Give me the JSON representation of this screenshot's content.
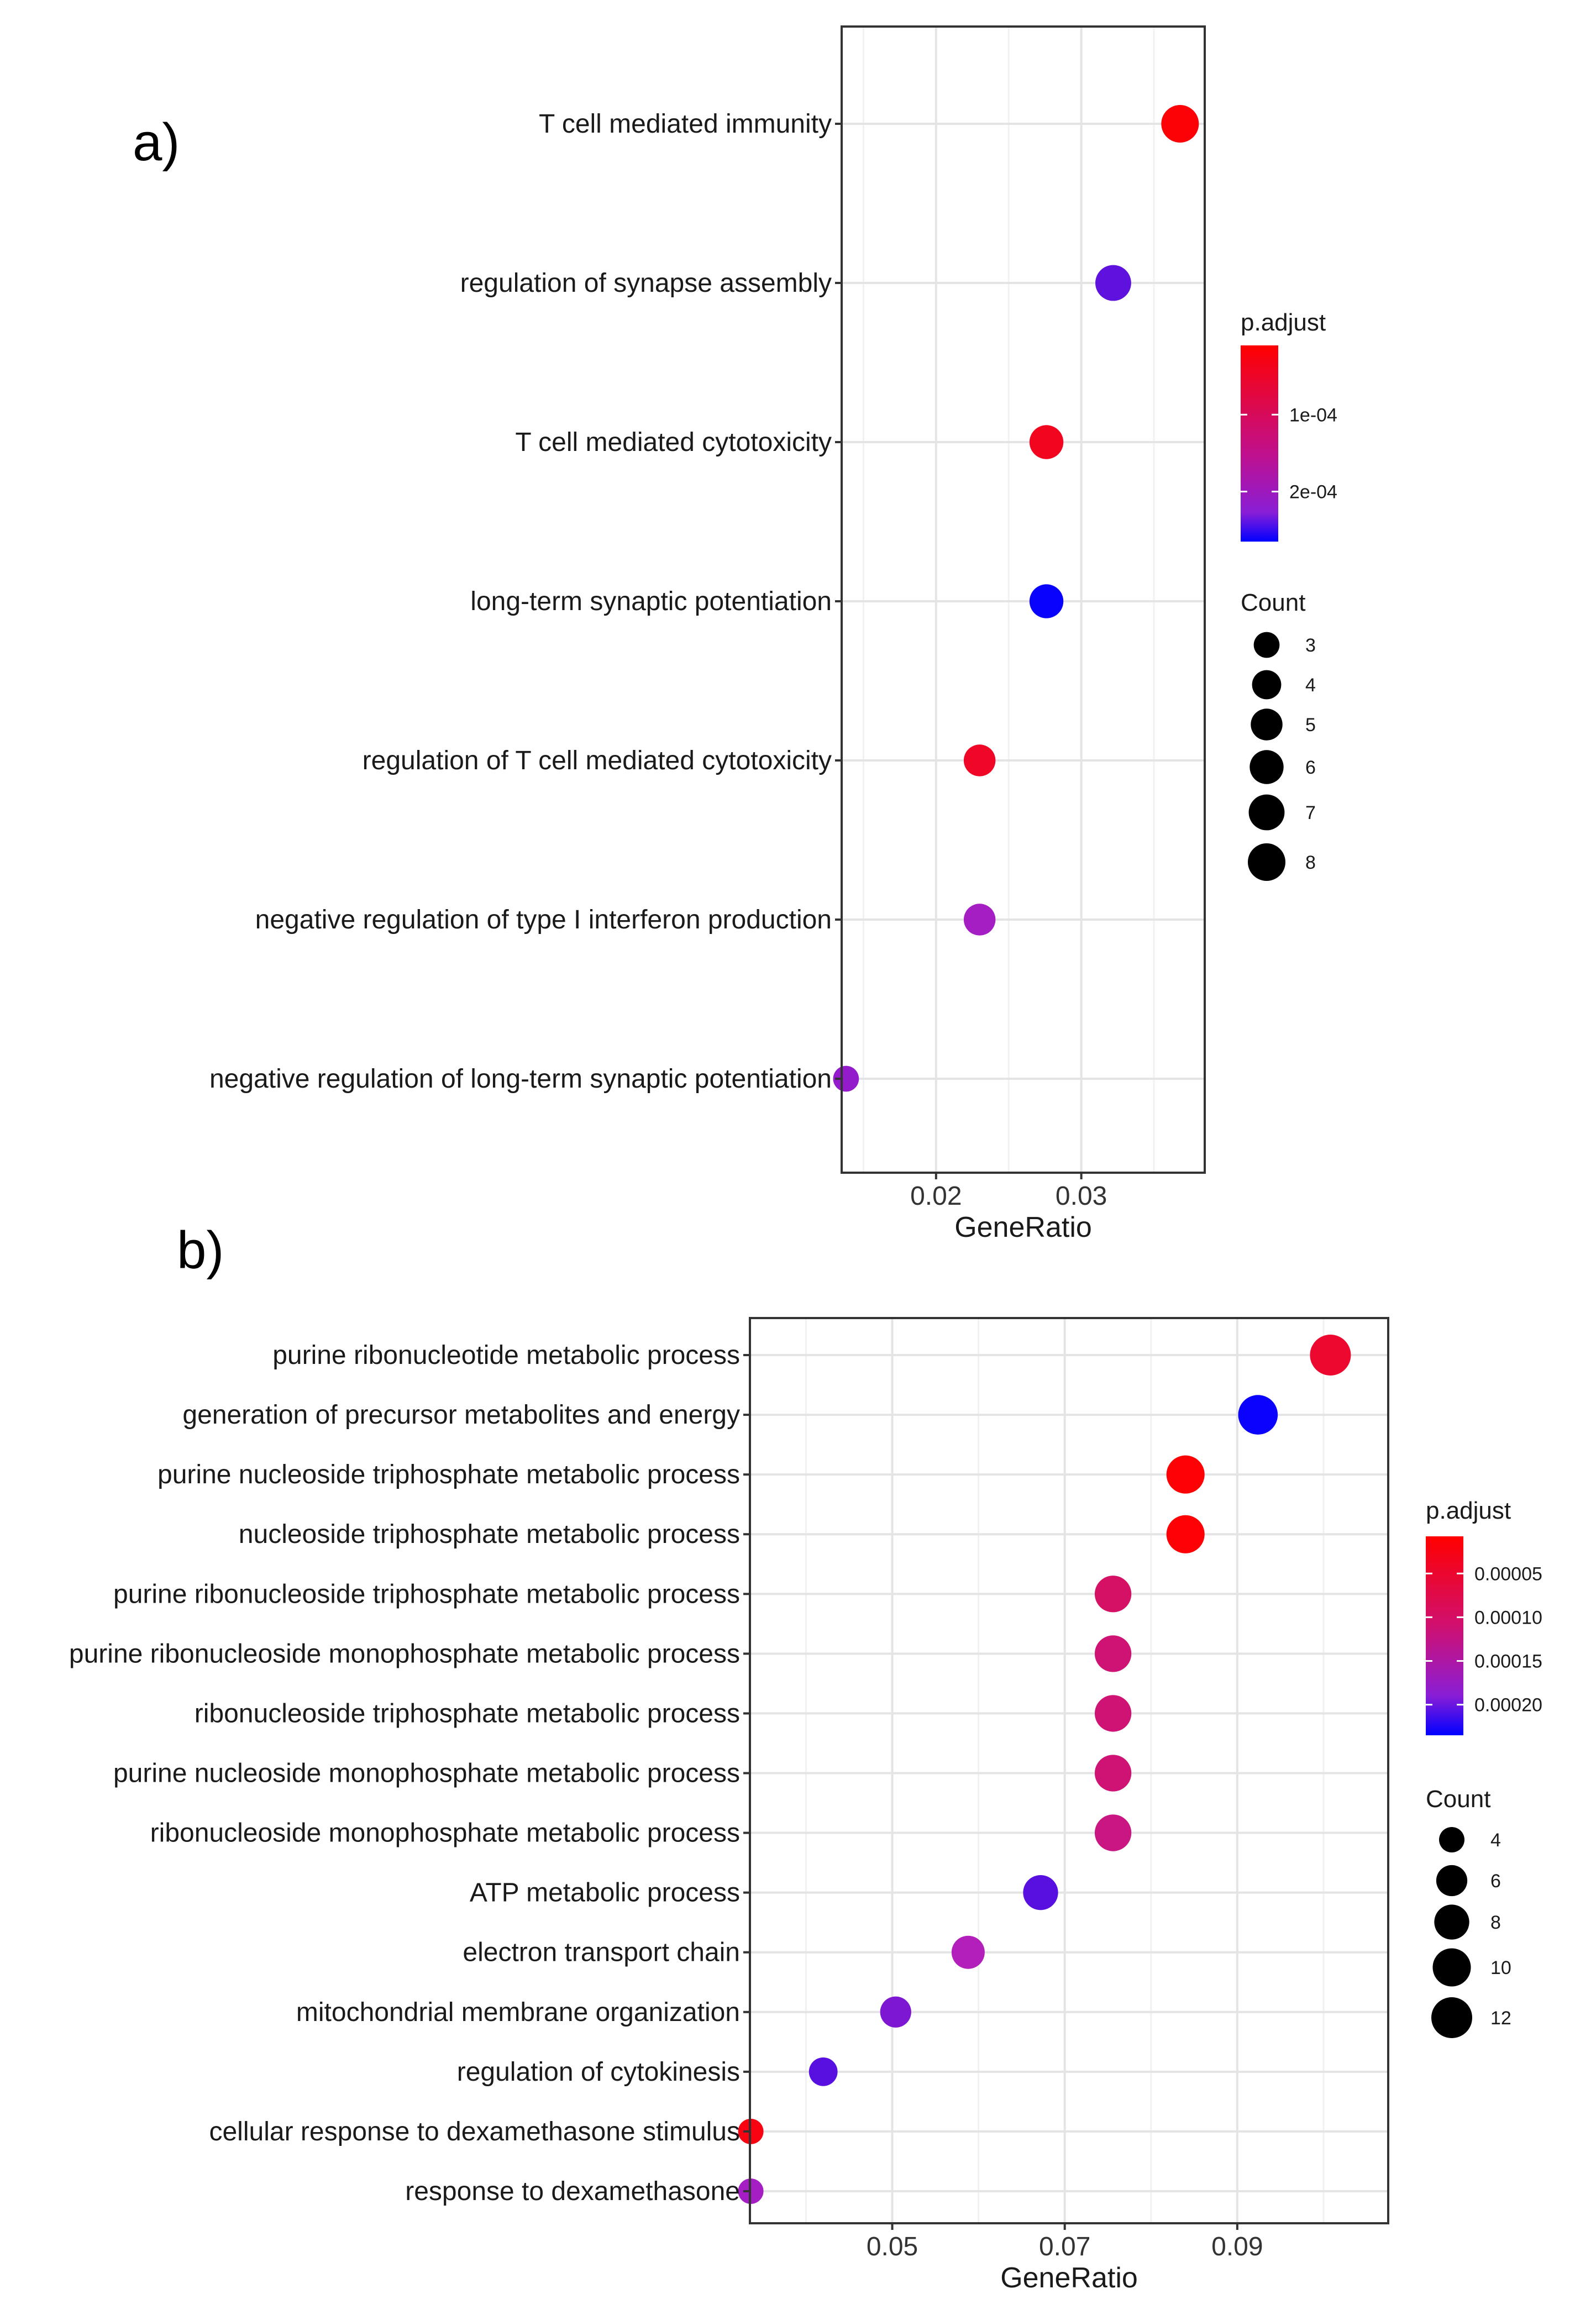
{
  "panel_labels": {
    "a": "a)",
    "b": "b)"
  },
  "chart_data": [
    {
      "type": "scatter",
      "panel": "a)",
      "xlabel": "GeneRatio",
      "xticks": [
        0.02,
        0.03
      ],
      "xtick_labels": [
        "0.02",
        "0.03"
      ],
      "xlim": [
        0.0135,
        0.0385
      ],
      "grid": true,
      "legend_position": "right",
      "color_legend": {
        "title": "p.adjust",
        "ticks": [
          {
            "value": 0.0001,
            "label": "1e-04"
          },
          {
            "value": 0.0002,
            "label": "2e-04"
          }
        ],
        "range": [
          1e-05,
          0.000265
        ],
        "colors": {
          "low": "#ff0000",
          "high": "#0000ff",
          "mid": "#b020c0"
        }
      },
      "size_legend": {
        "title": "Count",
        "values": [
          3,
          4,
          5,
          6,
          7,
          8
        ],
        "labels": [
          "3",
          "4",
          "5",
          "6",
          "7",
          "8"
        ],
        "range": [
          2,
          8
        ]
      },
      "categories": [
        "T cell mediated immunity",
        "regulation of synapse assembly",
        "T cell mediated cytotoxicity",
        "long-term synaptic potentiation",
        "regulation of T cell mediated cytotoxicity",
        "negative regulation of type I interferon production",
        "negative regulation of long-term synaptic potentiation"
      ],
      "points": [
        {
          "term": "T cell mediated immunity",
          "gene_ratio": 0.0368,
          "count": 8,
          "p_adjust": 1.5e-05
        },
        {
          "term": "regulation of synapse assembly",
          "gene_ratio": 0.0322,
          "count": 7,
          "p_adjust": 0.00021
        },
        {
          "term": "T cell mediated cytotoxicity",
          "gene_ratio": 0.0276,
          "count": 6,
          "p_adjust": 3.5e-05
        },
        {
          "term": "long-term synaptic potentiation",
          "gene_ratio": 0.0276,
          "count": 6,
          "p_adjust": 0.00026
        },
        {
          "term": "regulation of T cell mediated cytotoxicity",
          "gene_ratio": 0.023,
          "count": 5,
          "p_adjust": 4e-05
        },
        {
          "term": "negative regulation of type I interferon production",
          "gene_ratio": 0.023,
          "count": 5,
          "p_adjust": 0.00017
        },
        {
          "term": "negative regulation of long-term synaptic potentiation",
          "gene_ratio": 0.0138,
          "count": 3,
          "p_adjust": 0.00018
        }
      ]
    },
    {
      "type": "scatter",
      "panel": "b)",
      "xlabel": "GeneRatio",
      "xticks": [
        0.05,
        0.07,
        0.09
      ],
      "xtick_labels": [
        "0.05",
        "0.07",
        "0.09"
      ],
      "xlim": [
        0.0335,
        0.1075
      ],
      "grid": true,
      "legend_position": "right",
      "color_legend": {
        "title": "p.adjust",
        "ticks": [
          {
            "value": 5e-05,
            "label": "0.00005"
          },
          {
            "value": 0.0001,
            "label": "0.00010"
          },
          {
            "value": 0.00015,
            "label": "0.00015"
          },
          {
            "value": 0.0002,
            "label": "0.00020"
          }
        ],
        "range": [
          7.5e-06,
          0.000235
        ],
        "colors": {
          "low": "#ff0000",
          "high": "#0000ff",
          "mid": "#b020c0"
        }
      },
      "size_legend": {
        "title": "Count",
        "values": [
          4,
          6,
          8,
          10,
          12
        ],
        "labels": [
          "4",
          "6",
          "8",
          "10",
          "12"
        ],
        "range": [
          3,
          12
        ]
      },
      "categories": [
        "purine ribonucleotide metabolic process",
        "generation of precursor metabolites and energy",
        "purine nucleoside triphosphate metabolic process",
        "nucleoside triphosphate metabolic process",
        "purine ribonucleoside triphosphate metabolic process",
        "purine ribonucleoside monophosphate metabolic process",
        "ribonucleoside triphosphate metabolic process",
        "purine nucleoside monophosphate metabolic process",
        "ribonucleoside monophosphate metabolic process",
        "ATP metabolic process",
        "electron transport chain",
        "mitochondrial membrane organization",
        "regulation of cytokinesis",
        "cellular response to dexamethasone stimulus",
        "response to dexamethasone"
      ],
      "points": [
        {
          "term": "purine ribonucleotide metabolic process",
          "gene_ratio": 0.1008,
          "count": 12,
          "p_adjust": 4e-05
        },
        {
          "term": "generation of precursor metabolites and energy",
          "gene_ratio": 0.0924,
          "count": 11,
          "p_adjust": 0.00023
        },
        {
          "term": "purine nucleoside triphosphate metabolic process",
          "gene_ratio": 0.084,
          "count": 10,
          "p_adjust": 1e-05
        },
        {
          "term": "nucleoside triphosphate metabolic process",
          "gene_ratio": 0.084,
          "count": 10,
          "p_adjust": 1e-05
        },
        {
          "term": "purine ribonucleoside triphosphate metabolic process",
          "gene_ratio": 0.0756,
          "count": 9,
          "p_adjust": 8e-05
        },
        {
          "term": "purine ribonucleoside monophosphate metabolic process",
          "gene_ratio": 0.0756,
          "count": 9,
          "p_adjust": 9e-05
        },
        {
          "term": "ribonucleoside triphosphate metabolic process",
          "gene_ratio": 0.0756,
          "count": 9,
          "p_adjust": 9e-05
        },
        {
          "term": "purine nucleoside monophosphate metabolic process",
          "gene_ratio": 0.0756,
          "count": 9,
          "p_adjust": 9e-05
        },
        {
          "term": "ribonucleoside monophosphate metabolic process",
          "gene_ratio": 0.0756,
          "count": 9,
          "p_adjust": 0.0001
        },
        {
          "term": "ATP metabolic process",
          "gene_ratio": 0.0672,
          "count": 8,
          "p_adjust": 0.00019
        },
        {
          "term": "electron transport chain",
          "gene_ratio": 0.0588,
          "count": 7,
          "p_adjust": 0.00014
        },
        {
          "term": "mitochondrial membrane organization",
          "gene_ratio": 0.0504,
          "count": 6,
          "p_adjust": 0.00017
        },
        {
          "term": "regulation of cytokinesis",
          "gene_ratio": 0.042,
          "count": 5,
          "p_adjust": 0.00019
        },
        {
          "term": "cellular response to dexamethasone stimulus",
          "gene_ratio": 0.0336,
          "count": 4,
          "p_adjust": 2e-05
        },
        {
          "term": "response to dexamethasone",
          "gene_ratio": 0.0336,
          "count": 4,
          "p_adjust": 0.00015
        }
      ]
    }
  ]
}
